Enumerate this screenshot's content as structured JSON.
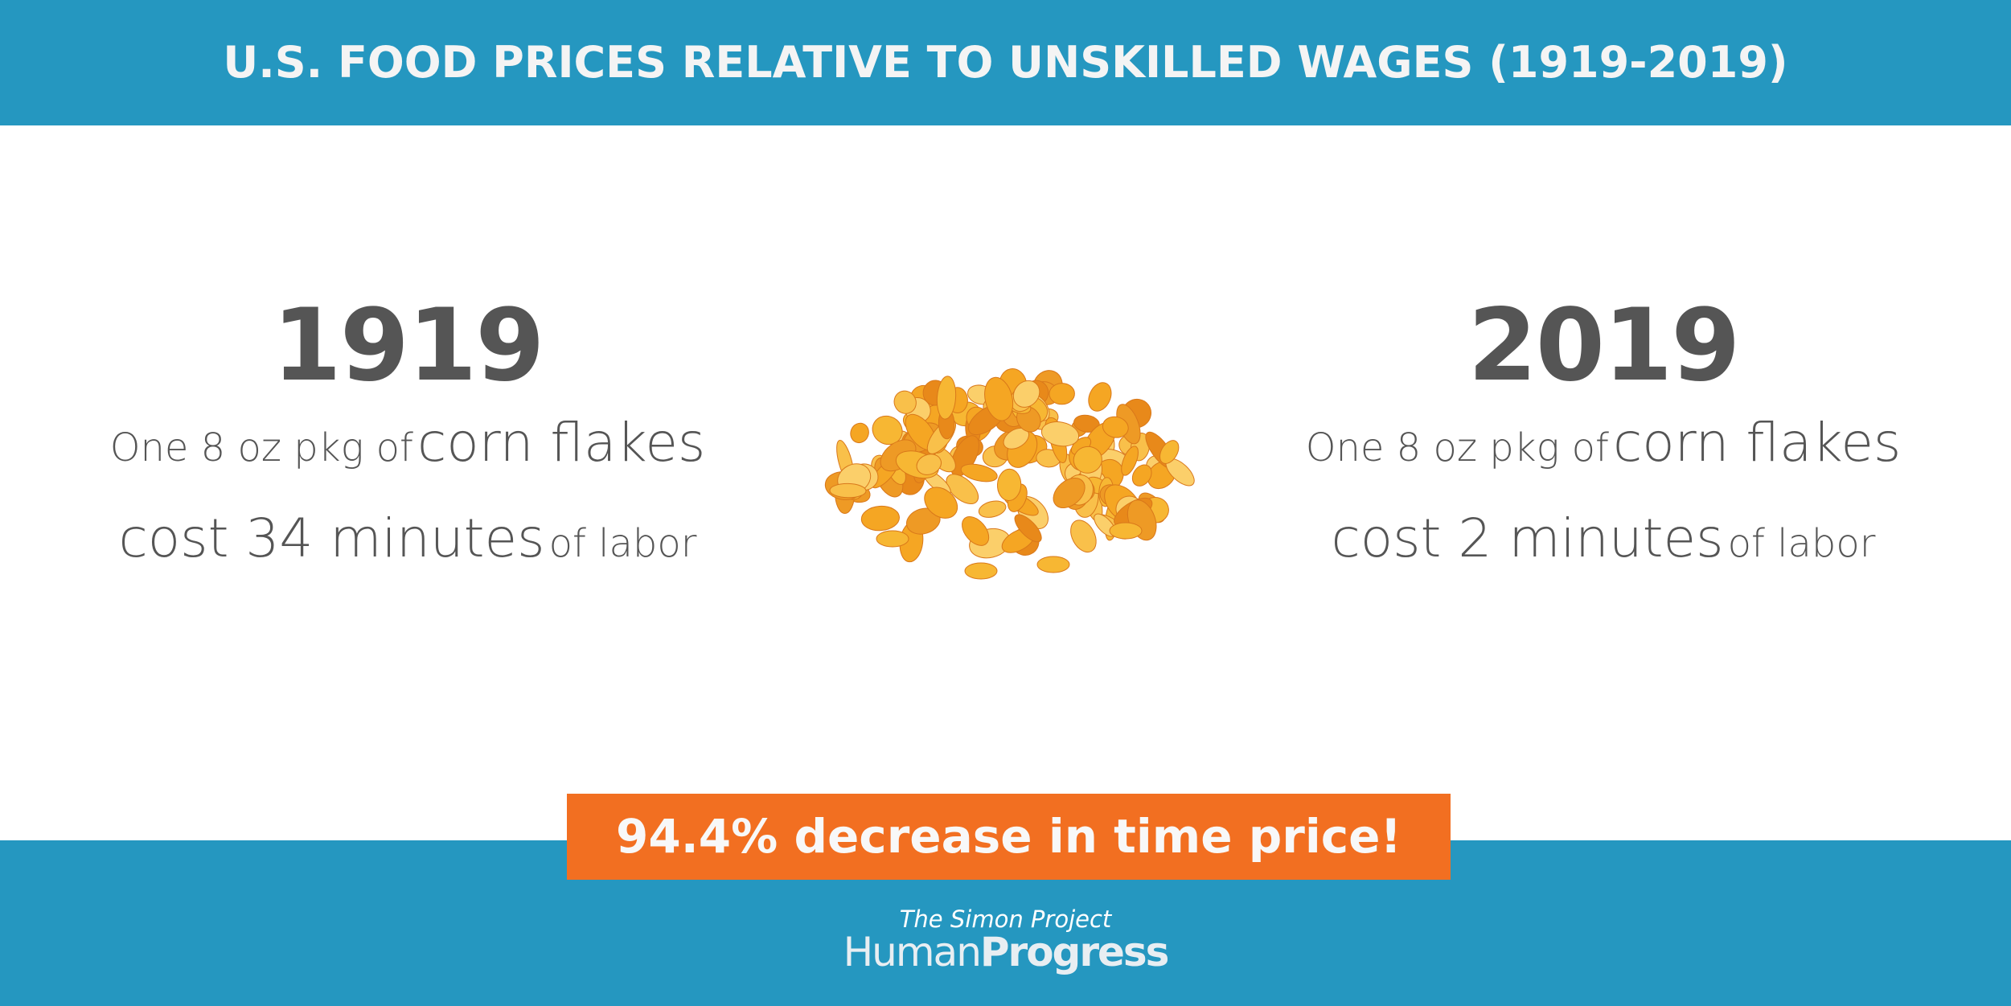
{
  "header": {
    "title": "U.S. FOOD PRICES RELATIVE TO UNSKILLED WAGES (1919-2019)"
  },
  "panels": [
    {
      "year": "1919",
      "line1": {
        "small": "One 8 oz pkg of",
        "large": "corn flakes"
      },
      "line2": {
        "large": "cost 34 minutes",
        "small": "of labor"
      }
    },
    {
      "year": "2019",
      "line1": {
        "small": "One 8 oz pkg of",
        "large": "corn flakes"
      },
      "line2": {
        "large": "cost 2 minutes",
        "small": "of labor"
      }
    }
  ],
  "callout": "94.4% decrease in time price!",
  "footer": {
    "tagline": "The Simon Project",
    "brand": {
      "part1": "Human",
      "part2": "Progress"
    }
  }
}
